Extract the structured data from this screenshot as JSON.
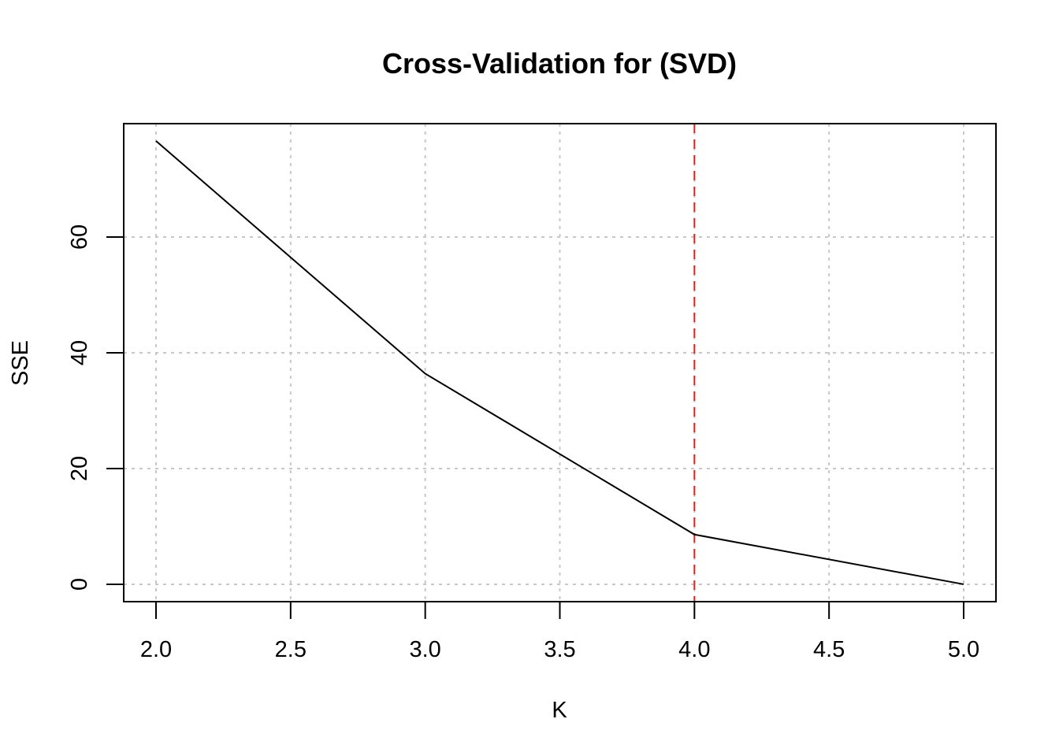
{
  "chart_data": {
    "type": "line",
    "title": "Cross-Validation for (SVD)",
    "xlabel": "K",
    "ylabel": "SSE",
    "xlim": [
      1.88,
      5.12
    ],
    "ylim": [
      -3.0,
      79.6
    ],
    "x_ticks": [
      2.0,
      2.5,
      3.0,
      3.5,
      4.0,
      4.5,
      5.0
    ],
    "x_tick_labels": [
      "2.0",
      "2.5",
      "3.0",
      "3.5",
      "4.0",
      "4.5",
      "5.0"
    ],
    "y_ticks": [
      0,
      20,
      40,
      60
    ],
    "y_tick_labels": [
      "0",
      "20",
      "40",
      "60"
    ],
    "grid": true,
    "series": [
      {
        "x": [
          2,
          3,
          4,
          5
        ],
        "y": [
          76.6,
          36.4,
          8.6,
          0.0
        ],
        "color": "#000000"
      }
    ],
    "vertical_reference_line": {
      "x": 4,
      "color": "#e0201c",
      "style": "dashed"
    }
  }
}
